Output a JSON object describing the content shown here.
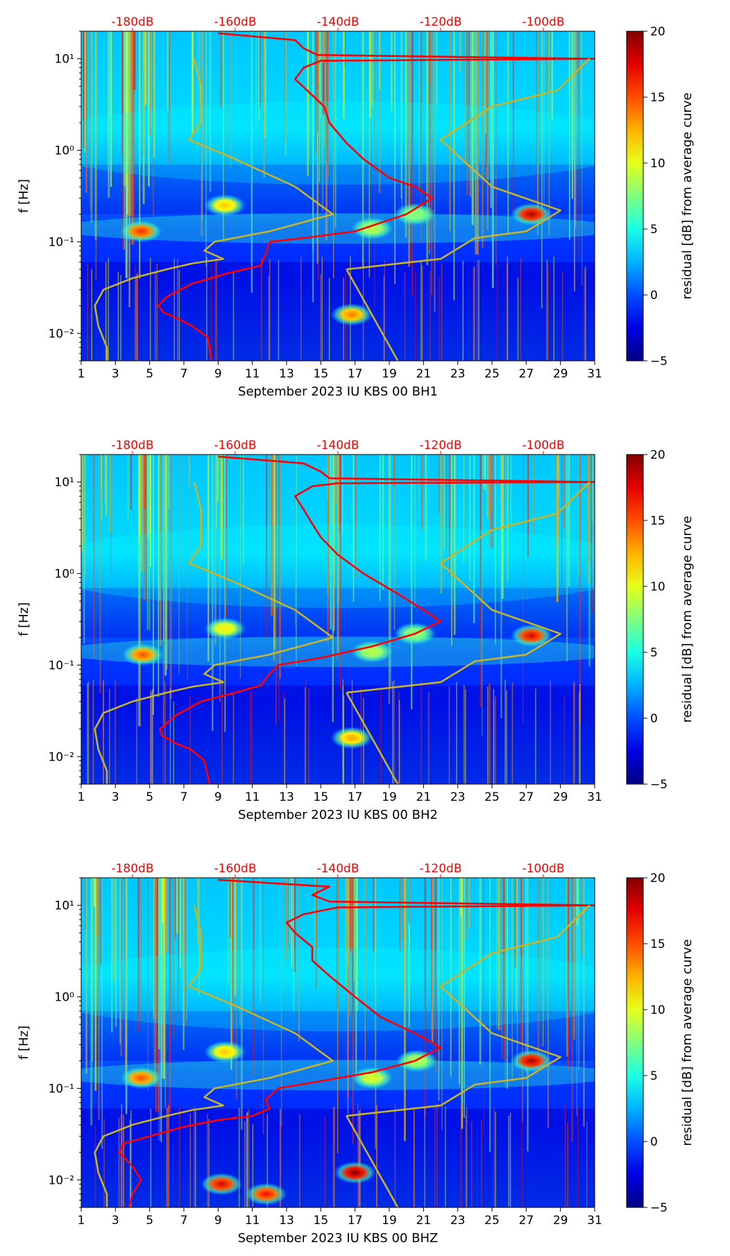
{
  "chart_data": [
    {
      "type": "heatmap",
      "xlabel": "September 2023 IU KBS 00 BH1",
      "ylabel": "f [Hz]",
      "x_ticks": [
        1,
        3,
        5,
        7,
        9,
        11,
        13,
        15,
        17,
        19,
        21,
        23,
        25,
        27,
        29,
        31
      ],
      "xlim": [
        1,
        31
      ],
      "y_scale": "log",
      "ylim": [
        0.005,
        20
      ],
      "y_ticks": [
        {
          "value": 0.01,
          "label": "10⁻²"
        },
        {
          "value": 0.1,
          "label": "10⁻¹"
        },
        {
          "value": 1,
          "label": "10⁰"
        },
        {
          "value": 10,
          "label": "10¹"
        }
      ],
      "top_axis": {
        "color": "#ff0000",
        "ticks": [
          {
            "x": 4,
            "label": "-180dB"
          },
          {
            "x": 10,
            "label": "-160dB"
          },
          {
            "x": 16,
            "label": "-140dB"
          },
          {
            "x": 22,
            "label": "-120dB"
          },
          {
            "x": 28,
            "label": "-100dB"
          }
        ]
      },
      "colorbar": {
        "label": "residual [dB] from average curve",
        "min": -5,
        "max": 20,
        "ticks": [
          -5,
          0,
          5,
          10,
          15,
          20
        ]
      },
      "hotspots": [
        {
          "x": 4.5,
          "f": 0.13,
          "value": 16
        },
        {
          "x": 9.4,
          "f": 0.25,
          "value": 12
        },
        {
          "x": 27.3,
          "f": 0.2,
          "value": 19
        },
        {
          "x": 18,
          "f": 0.14,
          "value": 9
        },
        {
          "x": 20.5,
          "f": 0.2,
          "value": 8
        },
        {
          "x": 16.8,
          "f": 0.016,
          "value": 14
        }
      ],
      "curves": [
        {
          "color": "#ff0000",
          "points": [
            [
              8.6,
              0.005
            ],
            [
              8.4,
              0.009
            ],
            [
              7.5,
              0.012
            ],
            [
              6.8,
              0.014
            ],
            [
              5.8,
              0.017
            ],
            [
              5.5,
              0.02
            ],
            [
              6,
              0.025
            ],
            [
              7.5,
              0.035
            ],
            [
              9.5,
              0.045
            ],
            [
              11.5,
              0.055
            ],
            [
              11.8,
              0.075
            ],
            [
              12,
              0.1
            ],
            [
              14,
              0.11
            ],
            [
              17,
              0.13
            ],
            [
              20,
              0.2
            ],
            [
              21.5,
              0.3
            ],
            [
              20.5,
              0.4
            ],
            [
              19,
              0.5
            ],
            [
              17.5,
              0.8
            ],
            [
              16.5,
              1.2
            ],
            [
              15.5,
              2
            ],
            [
              15.2,
              3
            ],
            [
              14.5,
              4
            ],
            [
              13.5,
              6
            ],
            [
              14,
              8
            ],
            [
              15,
              9.5
            ],
            [
              31,
              10
            ],
            [
              14.8,
              11
            ],
            [
              14,
              13
            ],
            [
              13.5,
              16
            ],
            [
              9,
              19
            ]
          ]
        },
        {
          "color": "#c8b42a",
          "points": [
            [
              2.5,
              0.005
            ],
            [
              2.5,
              0.007
            ],
            [
              2,
              0.012
            ],
            [
              1.8,
              0.02
            ],
            [
              2.3,
              0.03
            ],
            [
              4,
              0.04
            ],
            [
              6,
              0.05
            ],
            [
              7.5,
              0.058
            ],
            [
              9.3,
              0.065
            ],
            [
              8.2,
              0.08
            ],
            [
              8.8,
              0.1
            ],
            [
              12,
              0.13
            ],
            [
              15.7,
              0.2
            ],
            [
              13.5,
              0.4
            ],
            [
              10,
              0.8
            ],
            [
              7.3,
              1.3
            ],
            [
              8,
              2
            ],
            [
              8,
              5
            ],
            [
              7.6,
              10
            ],
            [
              null,
              null
            ],
            [
              16.5,
              0.05
            ],
            [
              19.5,
              0.005
            ],
            [
              null,
              null
            ],
            [
              16.5,
              0.05
            ],
            [
              22,
              0.065
            ],
            [
              24,
              0.11
            ],
            [
              27,
              0.13
            ],
            [
              29,
              0.22
            ],
            [
              25,
              0.4
            ],
            [
              22,
              1.3
            ],
            [
              25,
              3
            ],
            [
              28.8,
              4.5
            ],
            [
              30.7,
              10
            ]
          ]
        }
      ]
    },
    {
      "type": "heatmap",
      "xlabel": "September 2023 IU KBS 00 BH2",
      "ylabel": "f [Hz]",
      "x_ticks": [
        1,
        3,
        5,
        7,
        9,
        11,
        13,
        15,
        17,
        19,
        21,
        23,
        25,
        27,
        29,
        31
      ],
      "xlim": [
        1,
        31
      ],
      "y_scale": "log",
      "ylim": [
        0.005,
        20
      ],
      "y_ticks": [
        {
          "value": 0.01,
          "label": "10⁻²"
        },
        {
          "value": 0.1,
          "label": "10⁻¹"
        },
        {
          "value": 1,
          "label": "10⁰"
        },
        {
          "value": 10,
          "label": "10¹"
        }
      ],
      "top_axis": {
        "color": "#ff0000",
        "ticks": [
          {
            "x": 4,
            "label": "-180dB"
          },
          {
            "x": 10,
            "label": "-160dB"
          },
          {
            "x": 16,
            "label": "-140dB"
          },
          {
            "x": 22,
            "label": "-120dB"
          },
          {
            "x": 28,
            "label": "-100dB"
          }
        ]
      },
      "colorbar": {
        "label": "residual [dB] from average curve",
        "min": -5,
        "max": 20,
        "ticks": [
          -5,
          0,
          5,
          10,
          15,
          20
        ]
      },
      "hotspots": [
        {
          "x": 4.6,
          "f": 0.13,
          "value": 15
        },
        {
          "x": 9.4,
          "f": 0.25,
          "value": 11
        },
        {
          "x": 27.3,
          "f": 0.21,
          "value": 18
        },
        {
          "x": 18,
          "f": 0.14,
          "value": 9
        },
        {
          "x": 20.5,
          "f": 0.22,
          "value": 8
        },
        {
          "x": 16.8,
          "f": 0.016,
          "value": 13
        }
      ],
      "curves": [
        {
          "color": "#ff0000",
          "points": [
            [
              8.5,
              0.005
            ],
            [
              8.2,
              0.009
            ],
            [
              7.4,
              0.012
            ],
            [
              6.5,
              0.014
            ],
            [
              5.7,
              0.017
            ],
            [
              5.6,
              0.02
            ],
            [
              6.5,
              0.028
            ],
            [
              8,
              0.04
            ],
            [
              10,
              0.05
            ],
            [
              11.5,
              0.06
            ],
            [
              12,
              0.08
            ],
            [
              12.5,
              0.1
            ],
            [
              15,
              0.12
            ],
            [
              18,
              0.16
            ],
            [
              20.5,
              0.22
            ],
            [
              22,
              0.3
            ],
            [
              21,
              0.4
            ],
            [
              19.5,
              0.6
            ],
            [
              17.5,
              1
            ],
            [
              16,
              1.6
            ],
            [
              15,
              2.5
            ],
            [
              14.5,
              3.5
            ],
            [
              14,
              5
            ],
            [
              13.5,
              7
            ],
            [
              14.5,
              9
            ],
            [
              16,
              9.7
            ],
            [
              31,
              10
            ],
            [
              15.5,
              11
            ],
            [
              15,
              13
            ],
            [
              14,
              16
            ],
            [
              9,
              19
            ]
          ]
        },
        {
          "color": "#c8b42a",
          "points": [
            [
              2.5,
              0.005
            ],
            [
              2.5,
              0.007
            ],
            [
              2,
              0.012
            ],
            [
              1.8,
              0.02
            ],
            [
              2.3,
              0.03
            ],
            [
              4,
              0.04
            ],
            [
              6,
              0.05
            ],
            [
              7.5,
              0.058
            ],
            [
              9.3,
              0.065
            ],
            [
              8.2,
              0.08
            ],
            [
              8.8,
              0.1
            ],
            [
              12,
              0.13
            ],
            [
              15.7,
              0.2
            ],
            [
              13.5,
              0.4
            ],
            [
              10,
              0.8
            ],
            [
              7.3,
              1.3
            ],
            [
              8,
              2
            ],
            [
              8,
              5
            ],
            [
              7.6,
              10
            ],
            [
              null,
              null
            ],
            [
              16.5,
              0.05
            ],
            [
              19.5,
              0.005
            ],
            [
              null,
              null
            ],
            [
              16.5,
              0.05
            ],
            [
              22,
              0.065
            ],
            [
              24,
              0.11
            ],
            [
              27,
              0.13
            ],
            [
              29,
              0.22
            ],
            [
              25,
              0.4
            ],
            [
              22,
              1.3
            ],
            [
              25,
              3
            ],
            [
              28.8,
              4.5
            ],
            [
              30.7,
              10
            ]
          ]
        }
      ]
    },
    {
      "type": "heatmap",
      "xlabel": "September 2023 IU KBS 00 BHZ",
      "ylabel": "f [Hz]",
      "x_ticks": [
        1,
        3,
        5,
        7,
        9,
        11,
        13,
        15,
        17,
        19,
        21,
        23,
        25,
        27,
        29,
        31
      ],
      "xlim": [
        1,
        31
      ],
      "y_scale": "log",
      "ylim": [
        0.005,
        20
      ],
      "y_ticks": [
        {
          "value": 0.01,
          "label": "10⁻²"
        },
        {
          "value": 0.1,
          "label": "10⁻¹"
        },
        {
          "value": 1,
          "label": "10⁰"
        },
        {
          "value": 10,
          "label": "10¹"
        }
      ],
      "top_axis": {
        "color": "#ff0000",
        "ticks": [
          {
            "x": 4,
            "label": "-180dB"
          },
          {
            "x": 10,
            "label": "-160dB"
          },
          {
            "x": 16,
            "label": "-140dB"
          },
          {
            "x": 22,
            "label": "-120dB"
          },
          {
            "x": 28,
            "label": "-100dB"
          }
        ]
      },
      "colorbar": {
        "label": "residual [dB] from average curve",
        "min": -5,
        "max": 20,
        "ticks": [
          -5,
          0,
          5,
          10,
          15,
          20
        ]
      },
      "hotspots": [
        {
          "x": 4.5,
          "f": 0.13,
          "value": 15
        },
        {
          "x": 9.4,
          "f": 0.25,
          "value": 12
        },
        {
          "x": 27.3,
          "f": 0.2,
          "value": 19
        },
        {
          "x": 18,
          "f": 0.13,
          "value": 10
        },
        {
          "x": 20.6,
          "f": 0.2,
          "value": 9
        },
        {
          "x": 17,
          "f": 0.012,
          "value": 20
        },
        {
          "x": 9.2,
          "f": 0.009,
          "value": 18
        },
        {
          "x": 11.8,
          "f": 0.007,
          "value": 17
        }
      ],
      "curves": [
        {
          "color": "#ff0000",
          "points": [
            [
              3.8,
              0.005
            ],
            [
              4,
              0.007
            ],
            [
              4.5,
              0.01
            ],
            [
              4,
              0.014
            ],
            [
              3.2,
              0.02
            ],
            [
              3.5,
              0.025
            ],
            [
              5,
              0.03
            ],
            [
              7,
              0.038
            ],
            [
              9,
              0.045
            ],
            [
              11,
              0.05
            ],
            [
              12,
              0.06
            ],
            [
              11.8,
              0.075
            ],
            [
              12.5,
              0.1
            ],
            [
              15,
              0.12
            ],
            [
              18,
              0.15
            ],
            [
              20.5,
              0.2
            ],
            [
              22,
              0.28
            ],
            [
              20.5,
              0.4
            ],
            [
              18.5,
              0.6
            ],
            [
              17,
              1
            ],
            [
              15.5,
              1.7
            ],
            [
              14.5,
              2.5
            ],
            [
              14.5,
              3.5
            ],
            [
              13.5,
              5
            ],
            [
              13,
              6.5
            ],
            [
              14,
              8
            ],
            [
              16,
              9.5
            ],
            [
              31,
              10
            ],
            [
              15.5,
              11
            ],
            [
              14.5,
              13
            ],
            [
              15.5,
              16
            ],
            [
              9,
              19
            ]
          ]
        },
        {
          "color": "#c8b42a",
          "points": [
            [
              2.5,
              0.005
            ],
            [
              2.5,
              0.007
            ],
            [
              2,
              0.012
            ],
            [
              1.8,
              0.02
            ],
            [
              2.3,
              0.03
            ],
            [
              4,
              0.04
            ],
            [
              6,
              0.05
            ],
            [
              7.5,
              0.058
            ],
            [
              9.3,
              0.065
            ],
            [
              8.2,
              0.08
            ],
            [
              8.8,
              0.1
            ],
            [
              12,
              0.13
            ],
            [
              15.7,
              0.2
            ],
            [
              13.5,
              0.4
            ],
            [
              10,
              0.8
            ],
            [
              7.3,
              1.3
            ],
            [
              8,
              2
            ],
            [
              8,
              5
            ],
            [
              7.6,
              10
            ],
            [
              null,
              null
            ],
            [
              16.5,
              0.05
            ],
            [
              19.5,
              0.005
            ],
            [
              null,
              null
            ],
            [
              16.5,
              0.05
            ],
            [
              22,
              0.065
            ],
            [
              24,
              0.11
            ],
            [
              27,
              0.13
            ],
            [
              29,
              0.22
            ],
            [
              25,
              0.4
            ],
            [
              22,
              1.3
            ],
            [
              25,
              3
            ],
            [
              28.8,
              4.5
            ],
            [
              30.7,
              10
            ]
          ]
        }
      ]
    }
  ]
}
